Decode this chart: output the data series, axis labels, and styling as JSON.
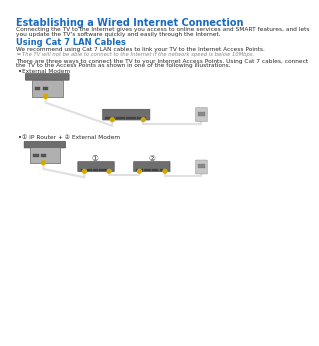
{
  "title": "Establishing a Wired Internet Connection",
  "title_color": "#1a6bbf",
  "title_fontsize": 7.0,
  "body_color": "#2a2a2a",
  "body_fontsize": 4.2,
  "note_fontsize": 3.8,
  "section_title": "Using Cat 7 LAN Cables",
  "section_title_color": "#1a6bbf",
  "section_title_fontsize": 6.0,
  "para1_l1": "Connecting the TV to the Internet gives you access to online services and SMART features, and lets",
  "para1_l2": "you update the TV's software quickly and easily through the Internet.",
  "para2": "We recommend using Cat 7 LAN cables to link your TV to the Internet Access Points.",
  "note": "The TV will not be able to connect to the Internet if the network speed is below 10Mbps.",
  "para3_l1": "There are three ways to connect the TV to your Internet Access Points. Using Cat 7 cables, connect",
  "para3_l2": "the TV to the Access Points as shown in one of the following illustrations.",
  "bullet1": "External Modem",
  "bullet2": "① IP Router + ② External Modem",
  "bg_color": "#ffffff",
  "connector_color": "#d4a800",
  "cable_color": "#e0e0e0",
  "device_dark": "#6e6e6e",
  "device_mid": "#888888",
  "device_light": "#aaaaaa",
  "wall_color": "#c8c8c8",
  "port_color": "#454545"
}
